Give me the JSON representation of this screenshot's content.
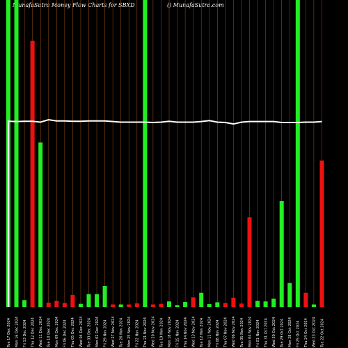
{
  "header": {
    "title": "MunafaSutra  Money Flow  Charts for SBXD",
    "site": "() MunafaSutra.com"
  },
  "colors": {
    "background": "#000000",
    "grid": "#8B4513",
    "up": "#22ee22",
    "down": "#ee1111",
    "line": "#ffffff"
  },
  "chart_data": {
    "type": "bar",
    "title": "MunafaSutra  Money Flow  Charts for SBXD",
    "grid": true,
    "ylim": [
      0,
      100
    ],
    "categories": [
      "Tue 17 Dec 2024",
      "Mon 16 Dec 2024",
      "Fri 13 Dec 2024",
      "Thu 12 Dec 2024",
      "Wed 11 Dec 2024",
      "Tue 10 Dec 2024",
      "Mon 09 Dec 2024",
      "Fri 06 Dec 2024",
      "Thu 05 Dec 2024",
      "Wed 04 Dec 2024",
      "Tue 03 Dec 2024",
      "Mon 02 Dec 2024",
      "Fri 29 Nov 2024",
      "Wed 27 Nov 2024",
      "Tue 26 Nov 2024",
      "Mon 25 Nov 2024",
      "Fri 22 Nov 2024",
      "Thu 21 Nov 2024",
      "Wed 20 Nov 2024",
      "Tue 19 Nov 2024",
      "Mon 18 Nov 2024",
      "Fri 15 Nov 2024",
      "Thu 14 Nov 2024",
      "Wed 13 Nov 2024",
      "Tue 12 Nov 2024",
      "Mon 11 Nov 2024",
      "Fri 08 Nov 2024",
      "Thu 07 Nov 2024",
      "Wed 06 Nov 2024",
      "Tue 05 Nov 2024",
      "Mon 04 Nov 2024",
      "Fri 01 Nov 2024",
      "Thu 31 Oct 2024",
      "Wed 30 Oct 2024",
      "Tue 29 Oct 2024",
      "Mon 28 Oct 2024",
      "Fri 25 Oct 2024",
      "Thu 24 Oct 2024",
      "Wed 23 Oct 2024",
      "Tue 22 Oct 2024"
    ],
    "values": [
      100,
      100,
      2.2,
      86.7,
      53.6,
      1.4,
      2,
      1.3,
      3.9,
      1,
      4.2,
      4.2,
      6.8,
      0.8,
      0.8,
      0.8,
      1.2,
      100,
      0.8,
      1,
      1.8,
      0.6,
      1.6,
      3.1,
      4.6,
      0.9,
      1.5,
      1.3,
      3,
      1.1,
      29.2,
      2,
      1.8,
      2.7,
      34.5,
      7.8,
      100,
      4.6,
      0.8,
      47.7
    ],
    "direction": [
      "up",
      "up",
      "up",
      "down",
      "up",
      "down",
      "down",
      "down",
      "down",
      "up",
      "up",
      "up",
      "up",
      "down",
      "up",
      "down",
      "down",
      "up",
      "down",
      "down",
      "up",
      "up",
      "up",
      "down",
      "up",
      "up",
      "up",
      "down",
      "down",
      "down",
      "down",
      "up",
      "up",
      "up",
      "up",
      "up",
      "up",
      "down",
      "up",
      "down"
    ],
    "line": [
      60.5,
      60.4,
      60.5,
      60.5,
      60.2,
      61,
      60.6,
      60.6,
      60.5,
      60.5,
      60.6,
      60.6,
      60.6,
      60.4,
      60.2,
      60.2,
      60.2,
      60.2,
      60.1,
      60.2,
      60.5,
      60.2,
      60.2,
      60.2,
      60.4,
      60.7,
      60.2,
      60.1,
      59.6,
      60.2,
      60.4,
      60.4,
      60.4,
      60.4,
      60.1,
      60.1,
      60.1,
      60.2,
      60.2,
      60.4
    ]
  }
}
